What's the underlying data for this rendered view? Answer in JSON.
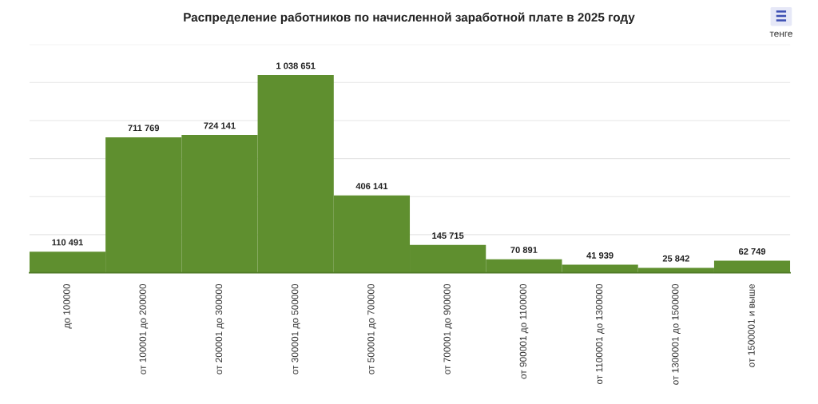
{
  "chart_data": {
    "type": "bar",
    "title": "Распределение работников по начисленной заработной плате в 2025 году",
    "categories": [
      "до 100000",
      "от 100001 до 200000",
      "от 200001 до 300000",
      "от 300001 до 500000",
      "от 500001 до 700000",
      "от 700001 до 900000",
      "от 900001 до 1100000",
      "от 1100001 до 1300000",
      "от 1300001 до 1500000",
      "от 1500001 и выше"
    ],
    "values": [
      110491,
      711769,
      724141,
      1038651,
      406141,
      145715,
      70891,
      41939,
      25842,
      62749
    ],
    "value_labels": [
      "110 491",
      "711 769",
      "724 141",
      "1 038 651",
      "406 141",
      "145 715",
      "70 891",
      "41 939",
      "25 842",
      "62 749"
    ],
    "color": "#5f8f2f",
    "ylim": [
      0,
      1200000
    ],
    "yticks": [
      {
        "value": 0,
        "label": null
      },
      {
        "value": 200000,
        "label": null
      },
      {
        "value": 400000,
        "label": null
      },
      {
        "value": 600000,
        "label": null
      },
      {
        "value": 800000,
        "label": null
      },
      {
        "value": 1000000,
        "label": null
      },
      {
        "value": 1200000,
        "label": null
      }
    ],
    "grid": "y",
    "annotations": [
      "тенге"
    ]
  }
}
